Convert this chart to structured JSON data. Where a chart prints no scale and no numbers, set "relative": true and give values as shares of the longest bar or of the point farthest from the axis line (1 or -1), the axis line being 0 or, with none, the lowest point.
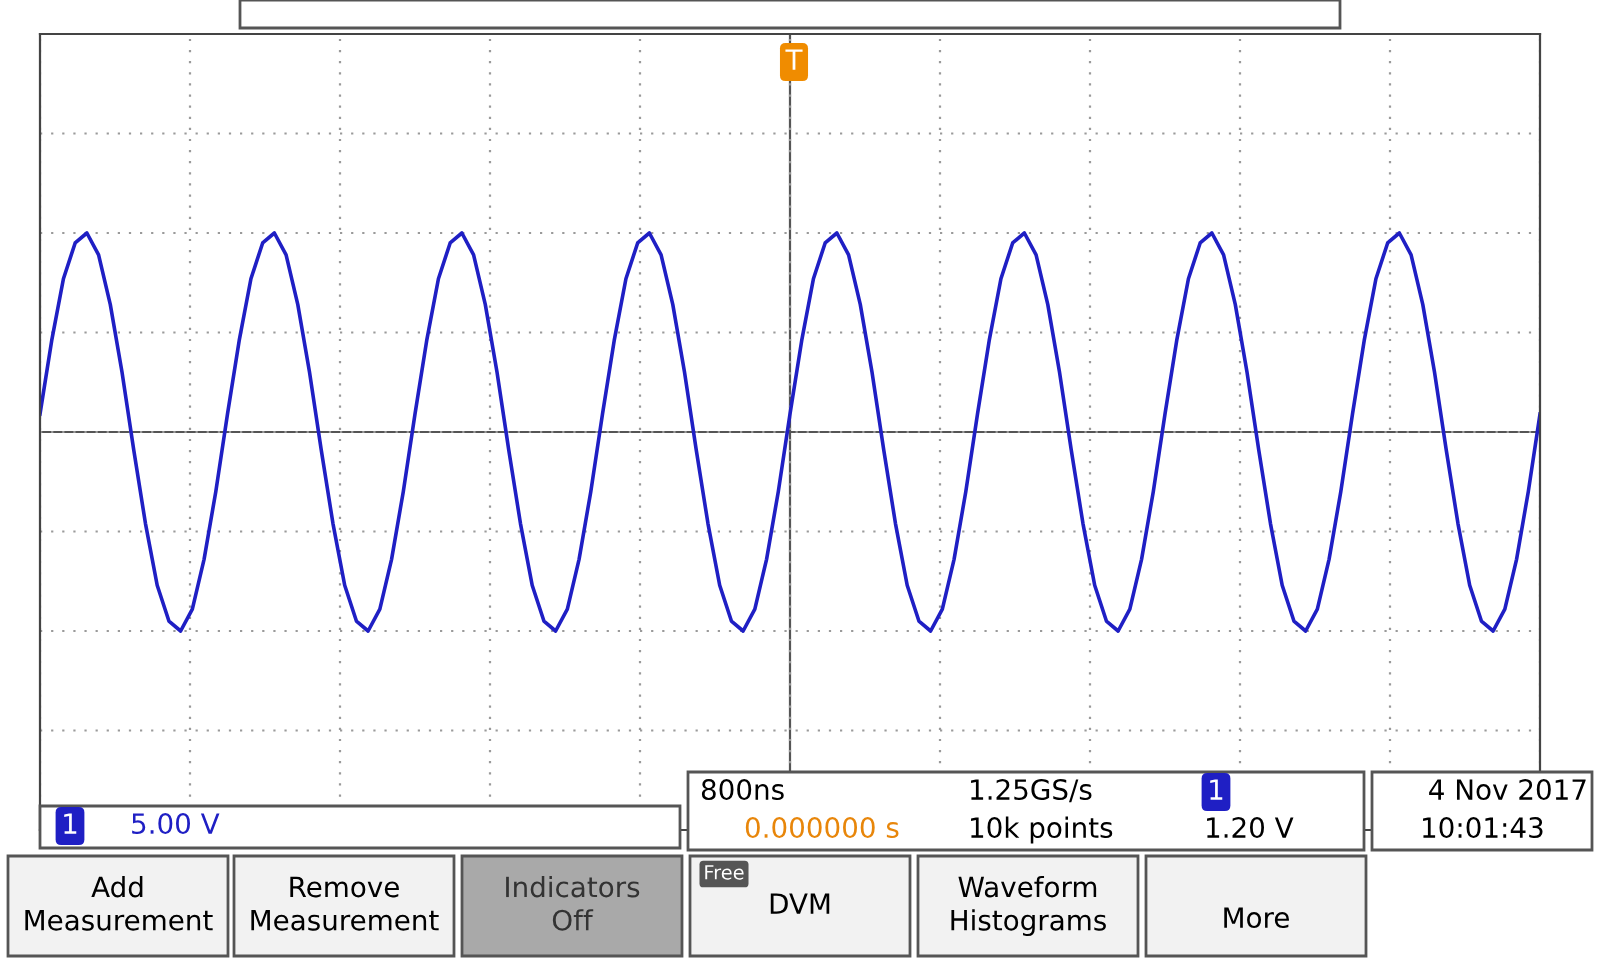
{
  "chart_data": {
    "type": "line",
    "relative": true,
    "grid": true,
    "legend": false,
    "tick_labels": false,
    "line_style": "solid",
    "marker": "none",
    "categories": [
      null,
      null,
      null,
      null,
      null,
      null,
      null,
      null,
      null,
      null,
      null,
      null,
      null,
      null,
      null,
      null,
      null,
      null,
      null,
      null,
      null,
      null,
      null,
      null,
      null,
      null,
      null,
      null,
      null,
      null,
      null,
      null,
      null,
      null,
      null,
      null,
      null,
      null,
      null,
      null,
      null,
      null,
      null,
      null,
      null,
      null,
      null,
      null,
      null,
      null,
      null,
      null,
      null,
      null,
      null,
      null,
      null,
      null,
      null,
      null,
      null,
      null,
      null,
      null,
      null,
      null,
      null,
      null,
      null,
      null,
      null,
      null,
      null,
      null,
      null,
      null,
      null,
      null,
      null,
      null,
      null,
      null,
      null,
      null,
      null,
      null,
      null,
      null,
      null,
      null,
      null,
      null,
      null,
      null,
      null,
      null,
      null,
      null,
      null,
      null,
      null,
      null,
      null,
      null,
      null,
      null,
      null,
      null,
      null,
      null,
      null,
      null,
      null,
      null,
      null,
      null,
      null,
      null,
      null,
      null,
      null,
      null,
      null,
      null,
      null,
      null,
      null,
      null,
      null
    ],
    "series": [
      {
        "color": "#1f1fc4",
        "values": [
          0.09,
          0.46,
          0.77,
          0.95,
          1,
          0.89,
          0.64,
          0.3,
          -0.09,
          -0.46,
          -0.77,
          -0.95,
          -1,
          -0.89,
          -0.64,
          -0.3,
          0.09,
          0.46,
          0.77,
          0.95,
          1,
          0.89,
          0.64,
          0.3,
          -0.09,
          -0.46,
          -0.77,
          -0.95,
          -1,
          -0.89,
          -0.64,
          -0.3,
          0.09,
          0.46,
          0.77,
          0.95,
          1,
          0.89,
          0.64,
          0.3,
          -0.09,
          -0.46,
          -0.77,
          -0.95,
          -1,
          -0.89,
          -0.64,
          -0.3,
          0.09,
          0.46,
          0.77,
          0.95,
          1,
          0.89,
          0.64,
          0.3,
          -0.09,
          -0.46,
          -0.77,
          -0.95,
          -1,
          -0.89,
          -0.64,
          -0.3,
          0.09,
          0.46,
          0.77,
          0.95,
          1,
          0.89,
          0.64,
          0.3,
          -0.09,
          -0.46,
          -0.77,
          -0.95,
          -1,
          -0.89,
          -0.64,
          -0.3,
          0.09,
          0.46,
          0.77,
          0.95,
          1,
          0.89,
          0.64,
          0.3,
          -0.09,
          -0.46,
          -0.77,
          -0.95,
          -1,
          -0.89,
          -0.64,
          -0.3,
          0.09,
          0.46,
          0.77,
          0.95,
          1,
          0.89,
          0.64,
          0.3,
          -0.09,
          -0.46,
          -0.77,
          -0.95,
          -1,
          -0.89,
          -0.64,
          -0.3,
          0.09,
          0.46,
          0.77,
          0.95,
          1,
          0.89,
          0.64,
          0.3,
          -0.09,
          -0.46,
          -0.77,
          -0.95,
          -1,
          -0.89,
          -0.64,
          -0.3,
          0.09
        ]
      }
    ],
    "annotations": [
      "1",
      "5.00 V",
      "800ns",
      "1.25GS/s",
      "1",
      "1.20 V",
      "0.000000 s",
      "10k points",
      "4 Nov 2017",
      "10:01:43",
      "Add\nMeasurement",
      "Remove\nMeasurement",
      "Indicators\nOff",
      "Free",
      "DVM",
      "Waveform\nHistograms",
      "More",
      "T"
    ]
  }
}
